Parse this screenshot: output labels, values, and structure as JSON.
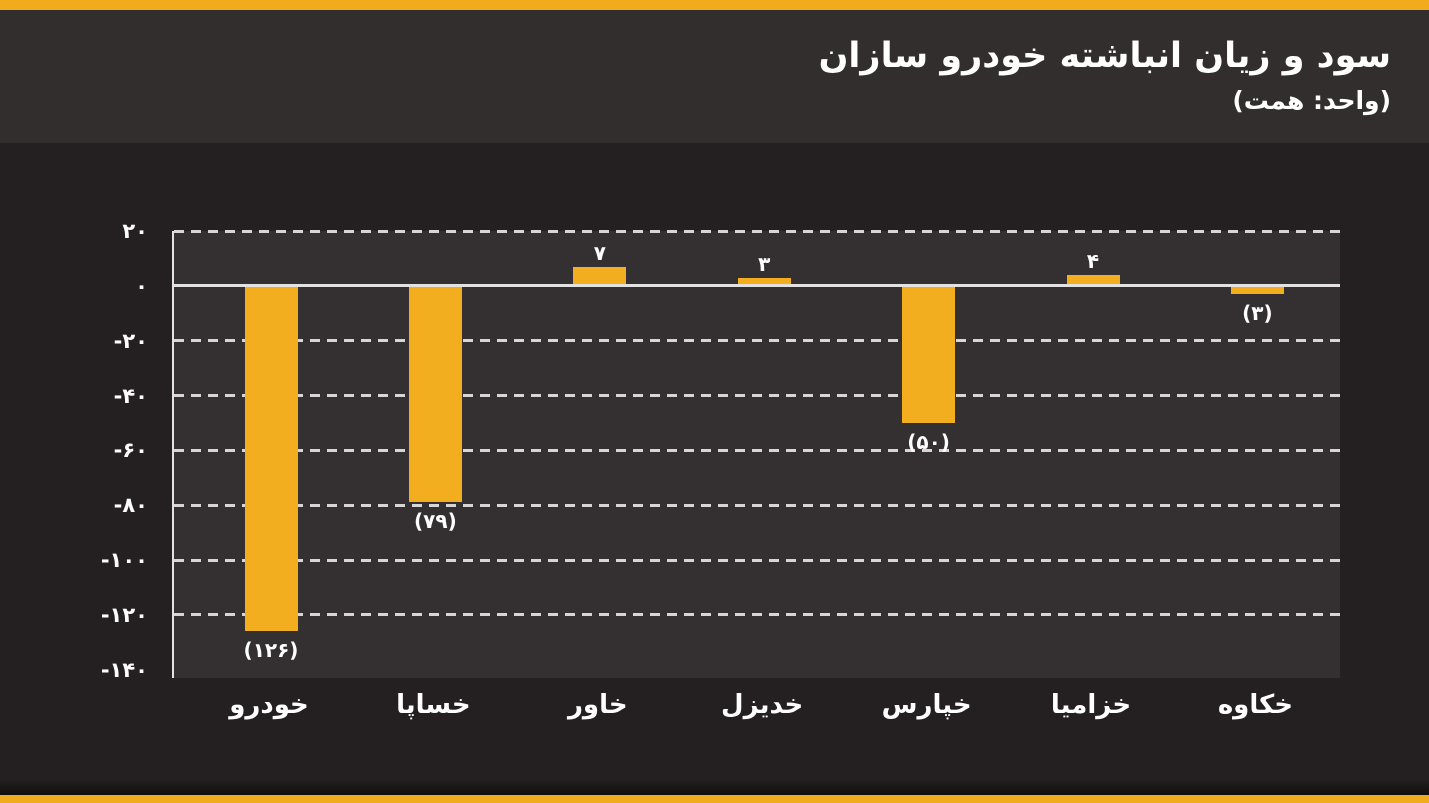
{
  "header": {
    "title": "سود و زیان انباشته خودرو سازان",
    "subtitle": "(واحد: همت)"
  },
  "colors": {
    "accent": "#F0AC1C",
    "bar": "#F2AE1E",
    "page_bg": "#242021",
    "header_bg": "#332E2E",
    "plot_bg": "#343031",
    "grid": "#D6D6D6",
    "zero_line": "#E2E2E2",
    "text": "#FFFFFF"
  },
  "chart_data": {
    "type": "bar",
    "title": "سود و زیان انباشته خودرو سازان",
    "subtitle": "(واحد: همت)",
    "categories": [
      "خودرو",
      "خساپا",
      "خاور",
      "خدیزل",
      "خپارس",
      "خزامیا",
      "خکاوه"
    ],
    "values": [
      -126,
      -79,
      7,
      3,
      -50,
      4,
      -3
    ],
    "value_labels": [
      "(۱۲۶)",
      "(۷۹)",
      "۷",
      "۳",
      "(۵۰)",
      "۴",
      "(۳)"
    ],
    "xlabel": "",
    "ylabel": "",
    "ylim": [
      -143,
      20
    ],
    "y_ticks": [
      {
        "value": 20,
        "label": "۲۰",
        "grid": "dashed"
      },
      {
        "value": 0,
        "label": "۰",
        "grid": "solid"
      },
      {
        "value": -20,
        "label": "-۲۰",
        "grid": "dashed"
      },
      {
        "value": -40,
        "label": "-۴۰",
        "grid": "dashed"
      },
      {
        "value": -60,
        "label": "-۶۰",
        "grid": "dashed"
      },
      {
        "value": -80,
        "label": "-۸۰",
        "grid": "dashed"
      },
      {
        "value": -100,
        "label": "-۱۰۰",
        "grid": "dashed"
      },
      {
        "value": -120,
        "label": "-۱۲۰",
        "grid": "dashed"
      },
      {
        "value": -140,
        "label": "-۱۴۰",
        "grid": "none"
      }
    ],
    "grid_on": true,
    "legend": "none",
    "orientation": "vertical",
    "rtl": true,
    "number_system": "persian-digits"
  }
}
